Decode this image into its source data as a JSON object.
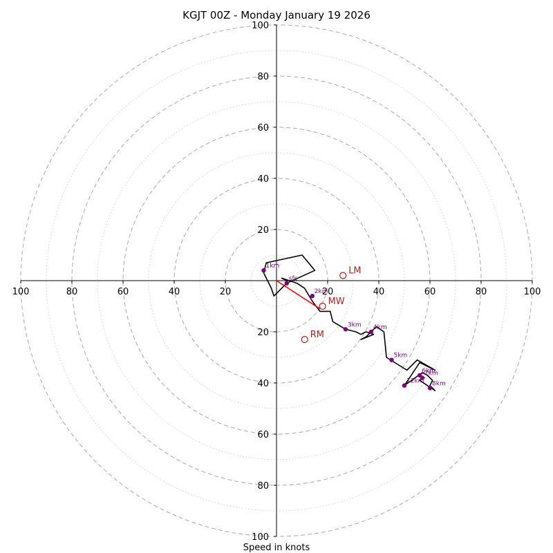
{
  "chart_data": {
    "type": "hodograph",
    "title": "KGJT 00Z - Monday January 19 2026",
    "xlabel": "Speed in knots",
    "range": 100,
    "ring_major": [
      20,
      40,
      60,
      80,
      100
    ],
    "ring_minor": [
      10,
      30,
      50,
      70,
      90
    ],
    "x_ticks": [
      {
        "v": -100,
        "label": "100"
      },
      {
        "v": -80,
        "label": "80"
      },
      {
        "v": -60,
        "label": "60"
      },
      {
        "v": -40,
        "label": "40"
      },
      {
        "v": -20,
        "label": "20"
      },
      {
        "v": 20,
        "label": "20"
      },
      {
        "v": 40,
        "label": "40"
      },
      {
        "v": 60,
        "label": "60"
      },
      {
        "v": 80,
        "label": "80"
      },
      {
        "v": 100,
        "label": "100"
      }
    ],
    "y_ticks": [
      {
        "v": 100,
        "label": "100"
      },
      {
        "v": 80,
        "label": "80"
      },
      {
        "v": 60,
        "label": "60"
      },
      {
        "v": 40,
        "label": "40"
      },
      {
        "v": 20,
        "label": "20"
      },
      {
        "v": -20,
        "label": "20"
      },
      {
        "v": -40,
        "label": "40"
      },
      {
        "v": -60,
        "label": "60"
      },
      {
        "v": -80,
        "label": "80"
      },
      {
        "v": -100,
        "label": "100"
      }
    ],
    "profile": [
      [
        4,
        -1
      ],
      [
        1,
        -4
      ],
      [
        -1,
        -6
      ],
      [
        -2,
        -3
      ],
      [
        -5,
        3
      ],
      [
        -4,
        7
      ],
      [
        10,
        10
      ],
      [
        15,
        4
      ],
      [
        4,
        -1
      ],
      [
        4,
        0
      ],
      [
        2,
        1
      ],
      [
        8,
        -1
      ],
      [
        11,
        -3
      ],
      [
        14,
        -8
      ],
      [
        17,
        -12
      ],
      [
        21,
        -12
      ],
      [
        22,
        -16
      ],
      [
        27,
        -19
      ],
      [
        31,
        -20
      ],
      [
        33,
        -21
      ],
      [
        35,
        -20
      ],
      [
        38,
        -21
      ],
      [
        33,
        -23
      ],
      [
        35,
        -22
      ],
      [
        37,
        -20
      ],
      [
        39,
        -18
      ],
      [
        42,
        -20
      ],
      [
        43,
        -30
      ],
      [
        51,
        -35
      ],
      [
        55,
        -31
      ],
      [
        62,
        -35
      ],
      [
        56,
        -32
      ],
      [
        50,
        -41
      ],
      [
        57,
        -36
      ],
      [
        59,
        -37
      ],
      [
        61,
        -39
      ],
      [
        60,
        -41
      ],
      [
        62,
        -43
      ],
      [
        56,
        -39
      ],
      [
        57,
        -38
      ],
      [
        58,
        -38
      ]
    ],
    "heights": [
      {
        "label": "sfc",
        "u": 4,
        "v": -1
      },
      {
        "label": "1km",
        "u": -5,
        "v": 4
      },
      {
        "label": "2km",
        "u": 14,
        "v": -6
      },
      {
        "label": "3km",
        "u": 27,
        "v": -19
      },
      {
        "label": "4km",
        "u": 37,
        "v": -20
      },
      {
        "label": "5km",
        "u": 45,
        "v": -31
      },
      {
        "label": "6km",
        "u": 56,
        "v": -37
      },
      {
        "label": "7km",
        "u": 57,
        "v": -38
      },
      {
        "label": "8km",
        "u": 60,
        "v": -42
      },
      {
        "label": "12km",
        "u": 50,
        "v": -41
      }
    ],
    "motions": [
      {
        "label": "LM",
        "u": 26,
        "v": 2
      },
      {
        "label": "MW",
        "u": 18,
        "v": -10
      },
      {
        "label": "RM",
        "u": 11,
        "v": -23
      }
    ],
    "mean_wind_vector": {
      "u": 17,
      "v": -11
    },
    "colors": {
      "profile": "#000000",
      "heights": "#800080",
      "motions": "#b22222",
      "mean_wind": "#ff0000",
      "grid": "#b0b0b0"
    }
  }
}
